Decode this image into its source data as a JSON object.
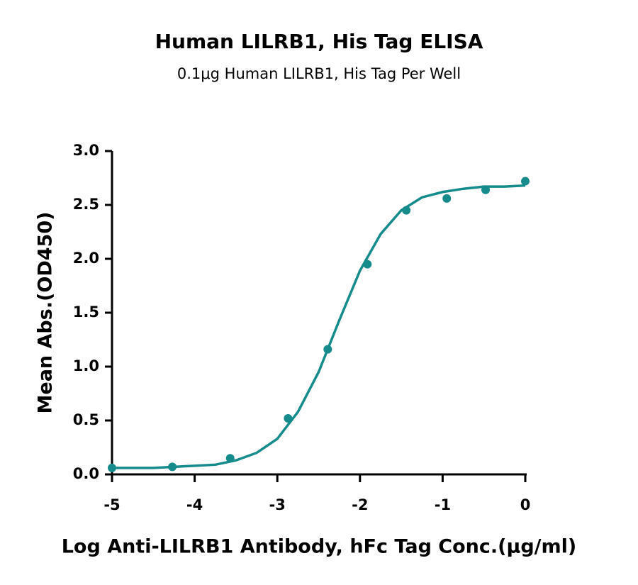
{
  "chart_data": {
    "type": "scatter",
    "title": "Human LILRB1, His Tag ELISA",
    "subtitle": "0.1μg Human LILRB1, His Tag Per Well",
    "x_label": "Log Anti-LILRB1 Antibody, hFc Tag Conc.(μg/ml)",
    "y_label": "Mean Abs.(OD450)",
    "xlim": [
      -5,
      0
    ],
    "xticks": [
      -5,
      -4,
      -3,
      -2,
      -1,
      0
    ],
    "ylim": [
      0,
      3
    ],
    "yticks": [
      {
        "value": 0,
        "label": "0.0"
      },
      0.5,
      {
        "value": 1,
        "label": "1.0"
      },
      1.5,
      {
        "value": 2,
        "label": "2.0"
      },
      2.5,
      {
        "value": 3,
        "label": "3.0"
      }
    ],
    "series": [
      {
        "style": "points",
        "color": "#168b8b",
        "x": [
          -5,
          -4.27,
          -3.57,
          -2.87,
          -2.39,
          -1.91,
          -1.44,
          -0.95,
          -0.48,
          0
        ],
        "values": [
          0.06,
          0.07,
          0.15,
          0.52,
          1.16,
          1.95,
          2.45,
          2.56,
          2.64,
          2.72
        ]
      },
      {
        "style": "line",
        "color": "#168b8b",
        "x": [
          -5,
          -4.75,
          -4.5,
          -4.25,
          -4,
          -3.75,
          -3.5,
          -3.25,
          -3,
          -2.75,
          -2.5,
          -2.25,
          -2,
          -1.75,
          -1.5,
          -1.25,
          -1,
          -0.75,
          -0.5,
          -0.25,
          0
        ],
        "values": [
          0.06,
          0.06,
          0.06,
          0.07,
          0.08,
          0.09,
          0.13,
          0.2,
          0.33,
          0.58,
          0.95,
          1.43,
          1.89,
          2.23,
          2.45,
          2.57,
          2.62,
          2.65,
          2.67,
          2.67,
          2.68
        ]
      }
    ]
  }
}
